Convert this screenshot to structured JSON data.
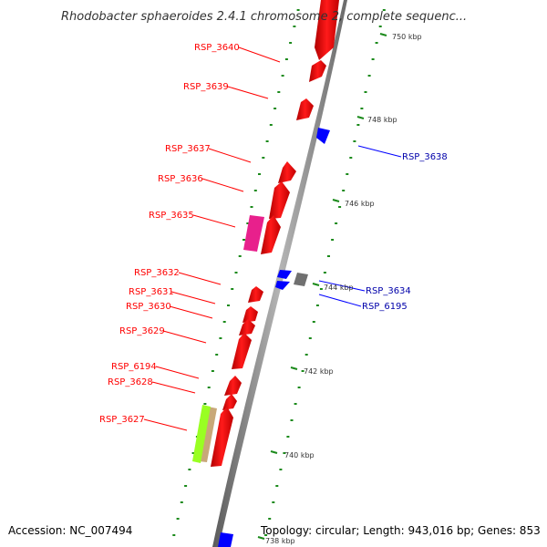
{
  "title": "Rhodobacter sphaeroides 2.4.1 chromosome 2, complete sequenc...",
  "accession": "Accession: NC_007494",
  "topology": "Topology: circular; Length: 943,016 bp; Genes: 853",
  "colors": {
    "forward": "#ff0000",
    "reverse": "#0000ff",
    "other": "#707070",
    "magenta": "#e8208c",
    "lime": "#99ff22",
    "tan": "#c8a878",
    "tick": "#1b8a1b",
    "backbone": "#8a8a8a"
  },
  "scale_labels": [
    "750 kbp",
    "748 kbp",
    "746 kbp",
    "744 kbp",
    "742 kbp",
    "740 kbp",
    "738 kbp"
  ],
  "genes_left": [
    "RSP_3640",
    "RSP_3639",
    "RSP_3637",
    "RSP_3636",
    "RSP_3635",
    "RSP_3632",
    "RSP_3631",
    "RSP_3630",
    "RSP_3629",
    "RSP_6194",
    "RSP_3628",
    "RSP_3627"
  ],
  "genes_right": [
    "RSP_3638",
    "RSP_3634",
    "RSP_6195"
  ]
}
